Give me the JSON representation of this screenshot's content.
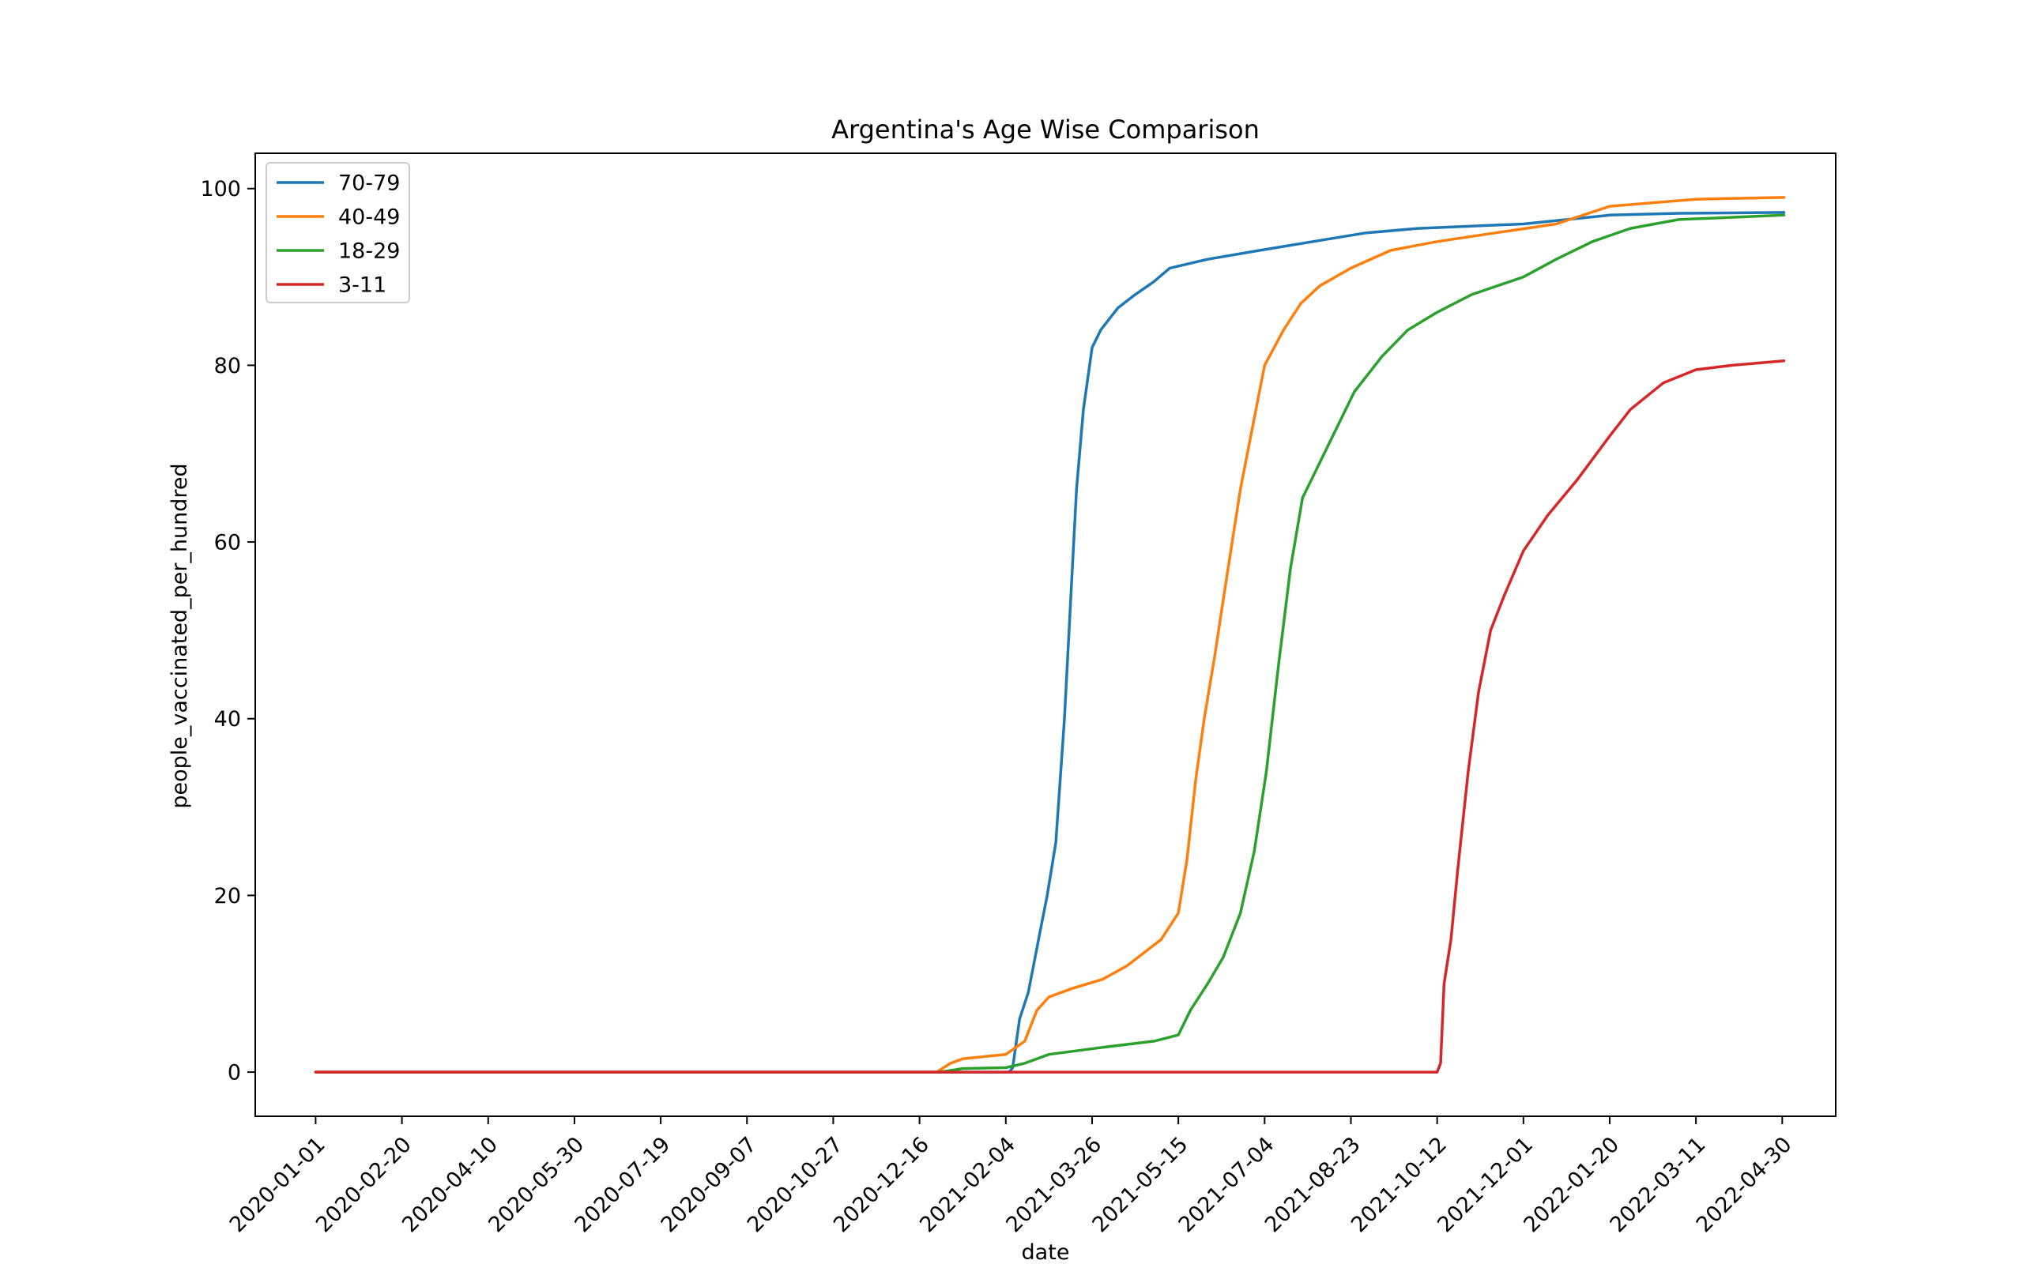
{
  "chart_data": {
    "type": "line",
    "title": "Argentina's Age Wise Comparison",
    "xlabel": "date",
    "ylabel": "people_vaccinated_per_hundred",
    "xlim": [
      "2019-11-27",
      "2022-05-31"
    ],
    "ylim": [
      -5,
      104
    ],
    "x_ticks": [
      "2020-01-01",
      "2020-02-20",
      "2020-04-10",
      "2020-05-30",
      "2020-07-19",
      "2020-09-07",
      "2020-10-27",
      "2020-12-16",
      "2021-02-04",
      "2021-03-26",
      "2021-05-15",
      "2021-07-04",
      "2021-08-23",
      "2021-10-12",
      "2021-12-01",
      "2022-01-20",
      "2022-03-11",
      "2022-04-30"
    ],
    "y_ticks": [
      0,
      20,
      40,
      60,
      80,
      100
    ],
    "grid": false,
    "legend_position": "upper left",
    "series": [
      {
        "name": "70-79",
        "color": "#1f77b4",
        "points": [
          [
            "2020-01-01",
            0
          ],
          [
            "2021-02-06",
            0
          ],
          [
            "2021-02-08",
            0.5
          ],
          [
            "2021-02-12",
            6
          ],
          [
            "2021-02-17",
            9
          ],
          [
            "2021-02-21",
            13
          ],
          [
            "2021-02-24",
            16
          ],
          [
            "2021-02-28",
            20
          ],
          [
            "2021-03-05",
            26
          ],
          [
            "2021-03-10",
            40
          ],
          [
            "2021-03-14",
            55
          ],
          [
            "2021-03-17",
            66
          ],
          [
            "2021-03-21",
            75
          ],
          [
            "2021-03-26",
            82
          ],
          [
            "2021-03-31",
            84
          ],
          [
            "2021-04-10",
            86.5
          ],
          [
            "2021-04-20",
            88
          ],
          [
            "2021-05-01",
            89.5
          ],
          [
            "2021-05-10",
            91
          ],
          [
            "2021-06-01",
            92
          ],
          [
            "2021-07-01",
            93
          ],
          [
            "2021-08-01",
            94
          ],
          [
            "2021-09-01",
            95
          ],
          [
            "2021-10-01",
            95.5
          ],
          [
            "2021-12-01",
            96
          ],
          [
            "2022-01-20",
            97
          ],
          [
            "2022-03-01",
            97.2
          ],
          [
            "2022-05-01",
            97.3
          ]
        ]
      },
      {
        "name": "40-49",
        "color": "#ff7f0e",
        "points": [
          [
            "2020-01-01",
            0
          ],
          [
            "2020-12-26",
            0
          ],
          [
            "2021-01-03",
            1
          ],
          [
            "2021-01-10",
            1.5
          ],
          [
            "2021-02-04",
            2
          ],
          [
            "2021-02-15",
            3.5
          ],
          [
            "2021-02-22",
            7
          ],
          [
            "2021-03-01",
            8.5
          ],
          [
            "2021-03-15",
            9.5
          ],
          [
            "2021-04-01",
            10.5
          ],
          [
            "2021-04-15",
            12
          ],
          [
            "2021-04-25",
            13.5
          ],
          [
            "2021-05-05",
            15
          ],
          [
            "2021-05-15",
            18
          ],
          [
            "2021-05-20",
            24
          ],
          [
            "2021-05-25",
            33
          ],
          [
            "2021-05-30",
            40
          ],
          [
            "2021-06-05",
            47
          ],
          [
            "2021-06-12",
            56
          ],
          [
            "2021-06-20",
            66
          ],
          [
            "2021-06-28",
            74
          ],
          [
            "2021-07-04",
            80
          ],
          [
            "2021-07-15",
            84
          ],
          [
            "2021-07-25",
            87
          ],
          [
            "2021-08-05",
            89
          ],
          [
            "2021-08-23",
            91
          ],
          [
            "2021-09-15",
            93
          ],
          [
            "2021-10-12",
            94
          ],
          [
            "2021-11-15",
            95
          ],
          [
            "2021-12-20",
            96
          ],
          [
            "2022-01-20",
            98
          ],
          [
            "2022-03-11",
            98.8
          ],
          [
            "2022-05-01",
            99
          ]
        ]
      },
      {
        "name": "18-29",
        "color": "#2ca02c",
        "points": [
          [
            "2020-01-01",
            0
          ],
          [
            "2020-12-28",
            0
          ],
          [
            "2021-01-10",
            0.4
          ],
          [
            "2021-02-04",
            0.5
          ],
          [
            "2021-02-15",
            1
          ],
          [
            "2021-03-01",
            2
          ],
          [
            "2021-04-01",
            2.8
          ],
          [
            "2021-05-01",
            3.5
          ],
          [
            "2021-05-15",
            4.2
          ],
          [
            "2021-05-22",
            7
          ],
          [
            "2021-06-01",
            10
          ],
          [
            "2021-06-10",
            13
          ],
          [
            "2021-06-20",
            18
          ],
          [
            "2021-06-28",
            25
          ],
          [
            "2021-07-05",
            34
          ],
          [
            "2021-07-12",
            46
          ],
          [
            "2021-07-19",
            57
          ],
          [
            "2021-07-26",
            65
          ],
          [
            "2021-08-05",
            69
          ],
          [
            "2021-08-15",
            73
          ],
          [
            "2021-08-25",
            77
          ],
          [
            "2021-09-10",
            81
          ],
          [
            "2021-09-25",
            84
          ],
          [
            "2021-10-12",
            86
          ],
          [
            "2021-11-01",
            88
          ],
          [
            "2021-12-01",
            90
          ],
          [
            "2021-12-20",
            92
          ],
          [
            "2022-01-10",
            94
          ],
          [
            "2022-02-01",
            95.5
          ],
          [
            "2022-03-01",
            96.5
          ],
          [
            "2022-05-01",
            97
          ]
        ]
      },
      {
        "name": "3-11",
        "color": "#d62728",
        "points": [
          [
            "2020-01-01",
            0
          ],
          [
            "2021-10-12",
            0
          ],
          [
            "2021-10-14",
            1
          ],
          [
            "2021-10-16",
            10
          ],
          [
            "2021-10-20",
            15
          ],
          [
            "2021-10-24",
            23
          ],
          [
            "2021-10-30",
            34
          ],
          [
            "2021-11-05",
            43
          ],
          [
            "2021-11-12",
            50
          ],
          [
            "2021-11-20",
            54
          ],
          [
            "2021-12-01",
            59
          ],
          [
            "2021-12-15",
            63
          ],
          [
            "2022-01-01",
            67
          ],
          [
            "2022-01-20",
            72
          ],
          [
            "2022-02-01",
            75
          ],
          [
            "2022-02-20",
            78
          ],
          [
            "2022-03-11",
            79.5
          ],
          [
            "2022-04-01",
            80
          ],
          [
            "2022-05-01",
            80.5
          ]
        ]
      }
    ]
  }
}
